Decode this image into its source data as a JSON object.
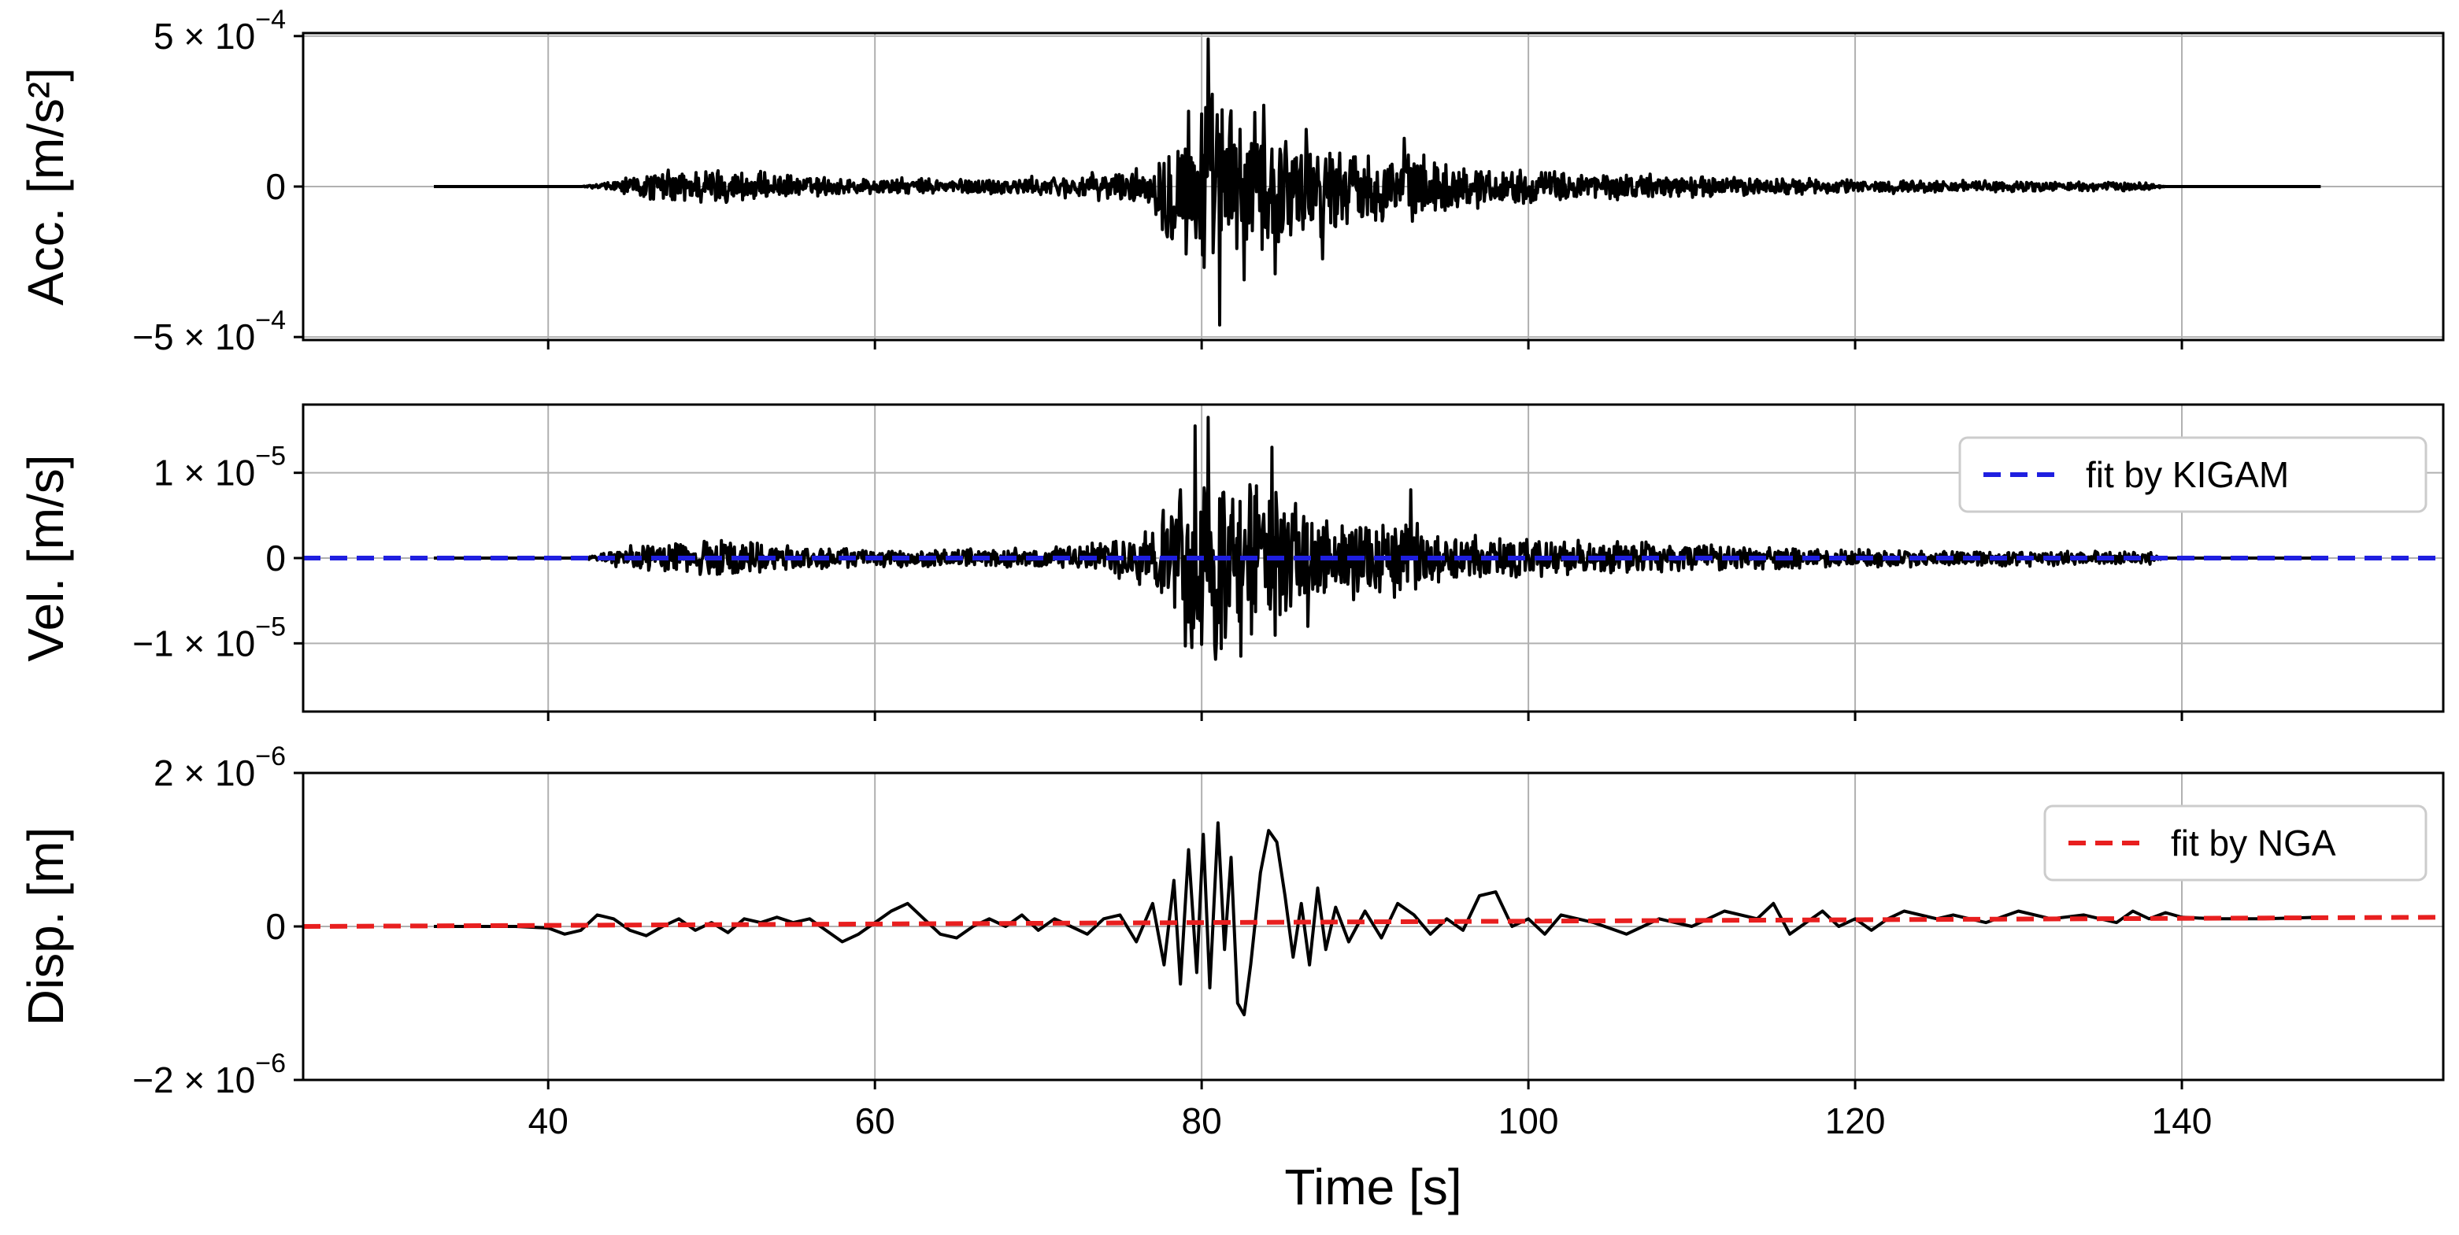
{
  "chart_data": {
    "type": "line",
    "xlabel": "Time [s]",
    "xlim": [
      25,
      156
    ],
    "x_ticks": [
      40,
      60,
      80,
      100,
      120,
      140
    ],
    "grid": true,
    "record_span": [
      33,
      148.5
    ],
    "panels": [
      {
        "ylabel": "Acc. [m/s²]",
        "ylim": [
          -0.00051,
          0.00051
        ],
        "y_ticks": [
          {
            "value": 0.0005,
            "base": "5 × 10",
            "exp": "−4"
          },
          {
            "value": 0,
            "base": "0",
            "exp": ""
          },
          {
            "value": -0.0005,
            "base": "−5 × 10",
            "exp": "−4"
          }
        ],
        "series": [
          {
            "color": "#000000",
            "style": "solid",
            "envelope": [
              [
                33,
                0
              ],
              [
                42,
                0
              ],
              [
                43,
                1e-05
              ],
              [
                47,
                6e-05
              ],
              [
                50,
                7e-05
              ],
              [
                55,
                4e-05
              ],
              [
                60,
                3e-05
              ],
              [
                65,
                3e-05
              ],
              [
                70,
                3.5e-05
              ],
              [
                74,
                5e-05
              ],
              [
                77,
                7e-05
              ],
              [
                78,
                0.00023
              ],
              [
                79,
                0.00028
              ],
              [
                80,
                0.00034
              ],
              [
                81,
                0.00036
              ],
              [
                82,
                0.0003
              ],
              [
                84,
                0.00024
              ],
              [
                86,
                0.0002
              ],
              [
                88,
                0.00016
              ],
              [
                90,
                0.00013
              ],
              [
                93,
                0.00012
              ],
              [
                96,
                8e-05
              ],
              [
                100,
                6e-05
              ],
              [
                105,
                5e-05
              ],
              [
                110,
                4e-05
              ],
              [
                120,
                2.5e-05
              ],
              [
                130,
                2e-05
              ],
              [
                138,
                1.5e-05
              ],
              [
                139,
                0
              ],
              [
                148.5,
                0
              ]
            ],
            "peaks": [
              {
                "x": 80.4,
                "y": 0.00049
              },
              {
                "x": 81.1,
                "y": -0.00046
              },
              {
                "x": 82.6,
                "y": -0.00031
              },
              {
                "x": 79.2,
                "y": 0.00025
              },
              {
                "x": 83.8,
                "y": 0.00027
              },
              {
                "x": 84.5,
                "y": -0.00029
              },
              {
                "x": 87.4,
                "y": -0.00024
              },
              {
                "x": 92.4,
                "y": 0.00016
              },
              {
                "x": 86.4,
                "y": 0.00019
              }
            ]
          }
        ]
      },
      {
        "ylabel": "Vel. [m/s]",
        "ylim": [
          -1.8e-05,
          1.8e-05
        ],
        "y_ticks": [
          {
            "value": 1e-05,
            "base": "1 × 10",
            "exp": "−5"
          },
          {
            "value": 0,
            "base": "0",
            "exp": ""
          },
          {
            "value": -1e-05,
            "base": "−1 × 10",
            "exp": "−5"
          }
        ],
        "series": [
          {
            "color": "#000000",
            "style": "solid",
            "envelope": [
              [
                33,
                0
              ],
              [
                42,
                0
              ],
              [
                43,
                5e-07
              ],
              [
                45,
                1.5e-06
              ],
              [
                48,
                2e-06
              ],
              [
                50,
                2.5e-06
              ],
              [
                55,
                1.5e-06
              ],
              [
                60,
                1.2e-06
              ],
              [
                65,
                1.2e-06
              ],
              [
                70,
                1.3e-06
              ],
              [
                74,
                2e-06
              ],
              [
                77,
                4e-06
              ],
              [
                78,
                9e-06
              ],
              [
                79,
                1.2e-05
              ],
              [
                80,
                1.3e-05
              ],
              [
                81,
                1.4e-05
              ],
              [
                82,
                1.1e-05
              ],
              [
                84,
                1.1e-05
              ],
              [
                86,
                8e-06
              ],
              [
                88,
                6e-06
              ],
              [
                90,
                5e-06
              ],
              [
                93,
                4.5e-06
              ],
              [
                96,
                3e-06
              ],
              [
                100,
                2.5e-06
              ],
              [
                110,
                1.8e-06
              ],
              [
                120,
                1.2e-06
              ],
              [
                130,
                1e-06
              ],
              [
                138,
                8e-07
              ],
              [
                139,
                0
              ],
              [
                148.5,
                0
              ]
            ],
            "peaks": [
              {
                "x": 80.4,
                "y": 1.65e-05
              },
              {
                "x": 79.6,
                "y": 1.55e-05
              },
              {
                "x": 84.3,
                "y": 1.3e-05
              },
              {
                "x": 82.4,
                "y": -1.15e-05
              },
              {
                "x": 80.9,
                "y": -1e-05
              },
              {
                "x": 78.7,
                "y": 8e-06
              },
              {
                "x": 79.2,
                "y": -7.5e-06
              },
              {
                "x": 92.8,
                "y": 8e-06
              },
              {
                "x": 86.5,
                "y": -8e-06
              }
            ]
          },
          {
            "name": "fit by KIGAM",
            "color": "#1f1fe0",
            "style": "dashed",
            "points": [
              [
                25,
                0
              ],
              [
                156,
                0
              ]
            ]
          }
        ],
        "legend": {
          "position": "upper right",
          "entries": [
            "fit by KIGAM"
          ]
        }
      },
      {
        "ylabel": "Disp. [m]",
        "ylim": [
          -2e-06,
          2e-06
        ],
        "y_ticks": [
          {
            "value": 2e-06,
            "base": "2 × 10",
            "exp": "−6"
          },
          {
            "value": 0,
            "base": "0",
            "exp": ""
          },
          {
            "value": -2e-06,
            "base": "−2 × 10",
            "exp": "−6"
          }
        ],
        "series": [
          {
            "color": "#000000",
            "style": "solid",
            "points": [
              [
                33,
                0
              ],
              [
                38,
                0
              ],
              [
                40,
                -2e-08
              ],
              [
                41,
                -1e-07
              ],
              [
                42,
                -5e-08
              ],
              [
                43,
                1.5e-07
              ],
              [
                44,
                1e-07
              ],
              [
                45,
                -5e-08
              ],
              [
                46,
                -1.2e-07
              ],
              [
                47,
                0
              ],
              [
                48,
                1e-07
              ],
              [
                49,
                -5e-08
              ],
              [
                50,
                5e-08
              ],
              [
                51,
                -8e-08
              ],
              [
                52,
                1e-07
              ],
              [
                53,
                5e-08
              ],
              [
                54,
                1.2e-07
              ],
              [
                55,
                5e-08
              ],
              [
                56,
                1e-07
              ],
              [
                57,
                -5e-08
              ],
              [
                58,
                -2e-07
              ],
              [
                59,
                -1e-07
              ],
              [
                60,
                5e-08
              ],
              [
                61,
                2e-07
              ],
              [
                62,
                3e-07
              ],
              [
                63,
                1e-07
              ],
              [
                64,
                -1e-07
              ],
              [
                65,
                -1.5e-07
              ],
              [
                66,
                0
              ],
              [
                67,
                1e-07
              ],
              [
                68,
                0
              ],
              [
                69,
                1.5e-07
              ],
              [
                70,
                -5e-08
              ],
              [
                71,
                1e-07
              ],
              [
                72,
                0
              ],
              [
                73,
                -1e-07
              ],
              [
                74,
                1e-07
              ],
              [
                75,
                1.5e-07
              ],
              [
                76,
                -2e-07
              ],
              [
                77,
                3e-07
              ],
              [
                77.7,
                -5e-07
              ],
              [
                78.3,
                6e-07
              ],
              [
                78.7,
                -7.5e-07
              ],
              [
                79.2,
                1e-06
              ],
              [
                79.7,
                -6e-07
              ],
              [
                80.1,
                1.2e-06
              ],
              [
                80.5,
                -8e-07
              ],
              [
                81,
                1.35e-06
              ],
              [
                81.4,
                -3e-07
              ],
              [
                81.8,
                9e-07
              ],
              [
                82.2,
                -1e-06
              ],
              [
                82.6,
                -1.15e-06
              ],
              [
                83,
                -5e-07
              ],
              [
                83.6,
                7e-07
              ],
              [
                84.1,
                1.25e-06
              ],
              [
                84.6,
                1.1e-06
              ],
              [
                85.1,
                4e-07
              ],
              [
                85.6,
                -4e-07
              ],
              [
                86.1,
                3e-07
              ],
              [
                86.6,
                -5e-07
              ],
              [
                87.1,
                5e-07
              ],
              [
                87.6,
                -3e-07
              ],
              [
                88.2,
                2.5e-07
              ],
              [
                89,
                -2e-07
              ],
              [
                90,
                2e-07
              ],
              [
                91,
                -1.5e-07
              ],
              [
                92,
                3e-07
              ],
              [
                93,
                1.5e-07
              ],
              [
                94,
                -1e-07
              ],
              [
                95,
                1e-07
              ],
              [
                96,
                -5e-08
              ],
              [
                97,
                4e-07
              ],
              [
                98,
                4.5e-07
              ],
              [
                99,
                0
              ],
              [
                100,
                1e-07
              ],
              [
                101,
                -1e-07
              ],
              [
                102,
                1.5e-07
              ],
              [
                104,
                5e-08
              ],
              [
                106,
                -1e-07
              ],
              [
                108,
                1e-07
              ],
              [
                110,
                0
              ],
              [
                112,
                2e-07
              ],
              [
                114,
                1e-07
              ],
              [
                115,
                3e-07
              ],
              [
                116,
                -1e-07
              ],
              [
                117,
                5e-08
              ],
              [
                118,
                2e-07
              ],
              [
                119,
                0
              ],
              [
                120,
                1e-07
              ],
              [
                121,
                -5e-08
              ],
              [
                122,
                1e-07
              ],
              [
                123,
                2e-07
              ],
              [
                125,
                1e-07
              ],
              [
                126,
                1.5e-07
              ],
              [
                128,
                5e-08
              ],
              [
                130,
                2e-07
              ],
              [
                132,
                1e-07
              ],
              [
                134,
                1.5e-07
              ],
              [
                136,
                5e-08
              ],
              [
                137,
                2e-07
              ],
              [
                138,
                1e-07
              ],
              [
                139,
                1.8e-07
              ],
              [
                140,
                1.2e-07
              ],
              [
                142,
                1e-07
              ],
              [
                145,
                1e-07
              ],
              [
                148.5,
                1.2e-07
              ]
            ]
          },
          {
            "name": "fit by NGA",
            "color": "#e81f1f",
            "style": "dashed",
            "points": [
              [
                25,
                0
              ],
              [
                156,
                1.2e-07
              ]
            ]
          }
        ],
        "legend": {
          "position": "upper right",
          "entries": [
            "fit by NGA"
          ]
        }
      }
    ]
  }
}
